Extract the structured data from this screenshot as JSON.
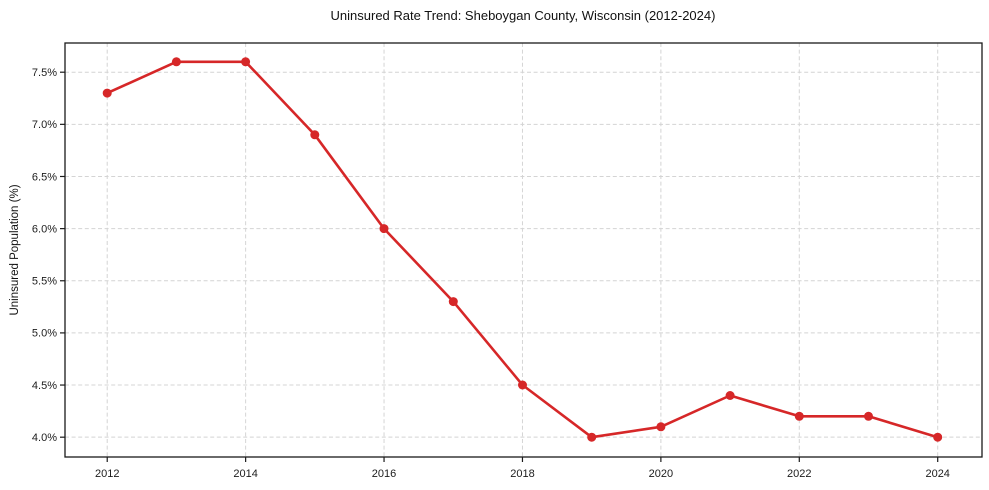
{
  "chart_data": {
    "type": "line",
    "title": "Uninsured Rate Trend: Sheboygan County, Wisconsin (2012-2024)",
    "xlabel": "",
    "ylabel": "Uninsured Population (%)",
    "x": [
      2012,
      2013,
      2014,
      2015,
      2016,
      2017,
      2018,
      2019,
      2020,
      2021,
      2022,
      2023,
      2024
    ],
    "series": [
      {
        "name": "Uninsured rate",
        "values": [
          7.3,
          7.6,
          7.6,
          6.9,
          6.0,
          5.3,
          4.5,
          4.0,
          4.1,
          4.4,
          4.2,
          4.2,
          4.0
        ]
      }
    ],
    "xlim": [
      2011.39,
      2024.64
    ],
    "ylim": [
      3.81,
      7.78
    ],
    "xticks": [
      2012,
      2014,
      2016,
      2018,
      2020,
      2022,
      2024
    ],
    "xtick_labels": [
      "2012",
      "2014",
      "2016",
      "2018",
      "2020",
      "2022",
      "2024"
    ],
    "yticks": [
      4.0,
      4.5,
      5.0,
      5.5,
      6.0,
      6.5,
      7.0,
      7.5
    ],
    "ytick_labels": [
      "4.0%",
      "4.5%",
      "5.0%",
      "5.5%",
      "6.0%",
      "6.5%",
      "7.0%",
      "7.5%"
    ],
    "grid": true,
    "legend_position": "none",
    "marker": "circle",
    "colors": {
      "line": "#d62728",
      "marker": "#d62728",
      "grid": "#d4d4d4",
      "spine": "#1a1a1a",
      "text": "#111111",
      "background": "#ffffff"
    }
  }
}
